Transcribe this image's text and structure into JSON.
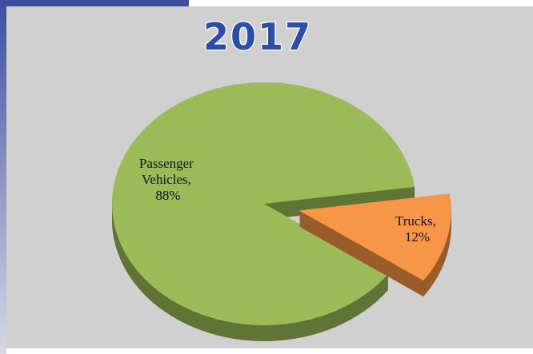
{
  "chart_data": {
    "type": "pie",
    "title": "2017",
    "categories": [
      "Passenger Vehicles",
      "Trucks"
    ],
    "values": [
      88,
      12
    ],
    "value_labels": [
      "Passenger Vehicles, 88%",
      "Trucks, 12%"
    ],
    "colors": [
      "#9bbb59",
      "#f79646"
    ]
  }
}
